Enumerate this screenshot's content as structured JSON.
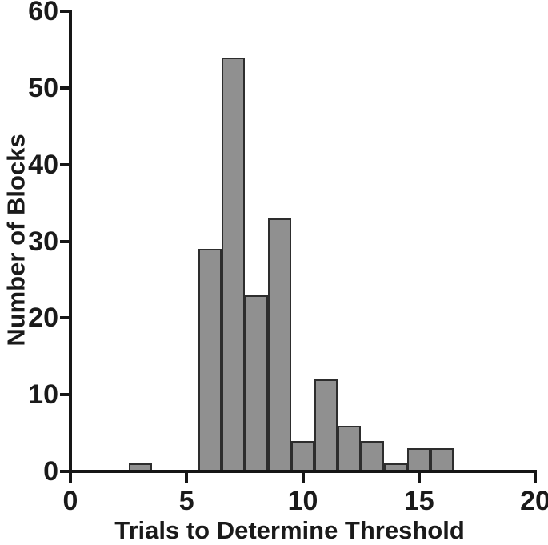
{
  "chart_data": {
    "type": "bar",
    "subtype": "histogram",
    "title": "",
    "xlabel": "Trials to Determine Threshold",
    "ylabel": "Number of Blocks",
    "xlim": [
      0,
      20
    ],
    "ylim": [
      0,
      60
    ],
    "xticks": [
      0,
      5,
      10,
      15,
      20
    ],
    "yticks": [
      0,
      10,
      20,
      30,
      40,
      50,
      60
    ],
    "bin_width": 1,
    "bin_centers": [
      3,
      6,
      7,
      8,
      9,
      10,
      11,
      12,
      13,
      14,
      15,
      16
    ],
    "values": [
      1,
      29,
      54,
      23,
      33,
      4,
      12,
      6,
      4,
      1,
      3,
      3
    ],
    "grid": false,
    "legend": null
  },
  "style": {
    "bar_fill": "#909090",
    "bar_stroke": "#2d2d2d",
    "axis_color": "#161616",
    "text_color": "#1a1a1a",
    "background": "#ffffff"
  }
}
